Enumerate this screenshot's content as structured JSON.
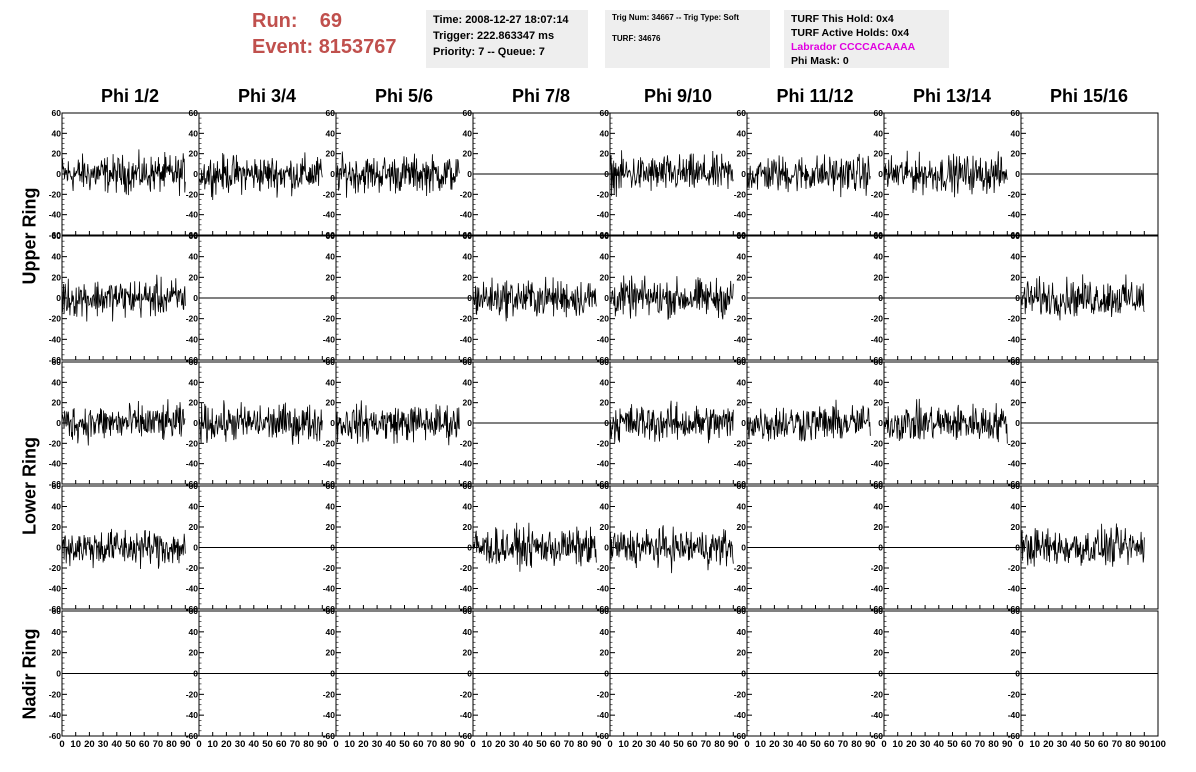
{
  "run_label": "Run:",
  "run_value": "69",
  "event_label": "Event:",
  "event_value": "8153767",
  "info1": {
    "time": "Time: 2008-12-27 18:07:14",
    "trigger": "Trigger: 222.863347 ms",
    "priority": "Priority: 7 -- Queue: 7"
  },
  "info2": {
    "trig": "Trig Num: 34667 -- Trig Type: Soft",
    "turf": "TURF: 34676"
  },
  "info3": {
    "this_hold": "TURF This Hold: 0x4",
    "active_holds": "TURF Active Holds: 0x4",
    "labrador": "Labrador CCCCACAAAA",
    "phi_mask": "Phi Mask: 0"
  },
  "rings": [
    "Upper Ring",
    "Lower Ring",
    "Nadir Ring"
  ],
  "chart_data": {
    "type": "line",
    "columns": [
      "Phi 1/2",
      "Phi 3/4",
      "Phi 5/6",
      "Phi 7/8",
      "Phi 9/10",
      "Phi 11/12",
      "Phi 13/14",
      "Phi 15/16"
    ],
    "ylim": [
      -60,
      60
    ],
    "yticks": [
      -60,
      -40,
      -20,
      0,
      20,
      40,
      60
    ],
    "xlim": [
      0,
      100
    ],
    "xticks": [
      0,
      10,
      20,
      30,
      40,
      50,
      60,
      70,
      80,
      90,
      100
    ],
    "xticklabels": [
      "0",
      "10",
      "20",
      "30",
      "40",
      "50",
      "60",
      "70",
      "80",
      "90",
      "100"
    ],
    "flat_level": 0,
    "panels": [
      [
        1,
        1,
        1,
        0,
        1,
        1,
        1,
        0
      ],
      [
        1,
        0,
        0,
        1,
        1,
        0,
        0,
        1
      ],
      [
        1,
        1,
        1,
        0,
        1,
        1,
        1,
        0
      ],
      [
        1,
        0,
        0,
        1,
        1,
        0,
        0,
        1
      ],
      [
        0,
        0,
        0,
        0,
        0,
        0,
        0,
        0
      ]
    ],
    "noise_amplitude": 15,
    "series_length": 90
  }
}
